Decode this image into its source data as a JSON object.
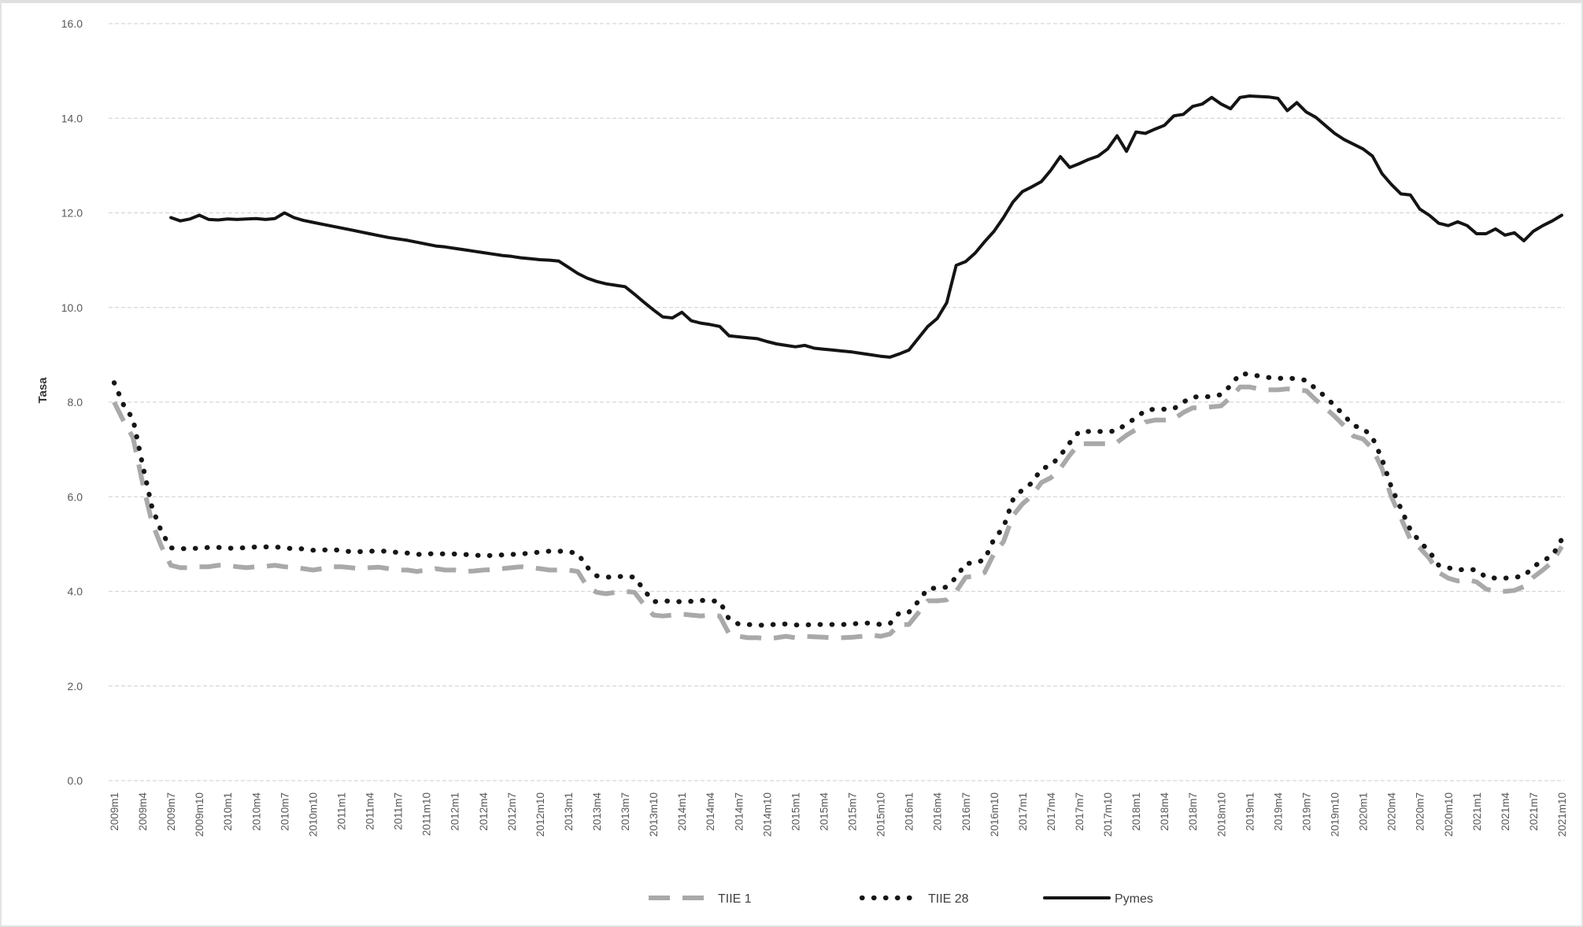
{
  "chart_data": {
    "type": "line",
    "title": "",
    "ylabel": "Tasa",
    "xlabel": "",
    "ylim": [
      0,
      16
    ],
    "ytick_step": 2,
    "ytick_labels": [
      "0.0",
      "2.0",
      "4.0",
      "6.0",
      "8.0",
      "10.0",
      "12.0",
      "14.0",
      "16.0"
    ],
    "x_tick_every": 3,
    "n_points": 154,
    "x_start": "2009m1",
    "x_end": "2021m10",
    "grid": "horizontal light-gray dashed",
    "legend_position": "bottom-center",
    "x_tick_labels": [
      "2009m1",
      "2009m4",
      "2009m7",
      "2009m10",
      "2010m1",
      "2010m4",
      "2010m7",
      "2010m10",
      "2011m1",
      "2011m4",
      "2011m7",
      "2011m10",
      "2012m1",
      "2012m4",
      "2012m7",
      "2012m10",
      "2013m1",
      "2013m4",
      "2013m7",
      "2013m10",
      "2014m1",
      "2014m4",
      "2014m7",
      "2014m10",
      "2015m1",
      "2015m4",
      "2015m7",
      "2015m10",
      "2016m1",
      "2016m4",
      "2016m7",
      "2016m10",
      "2017m1",
      "2017m4",
      "2017m7",
      "2017m10",
      "2018m1",
      "2018m4",
      "2018m7",
      "2018m10",
      "2019m1",
      "2019m4",
      "2019m7",
      "2019m10",
      "2020m1",
      "2020m4",
      "2020m7",
      "2020m10",
      "2021m1",
      "2021m4",
      "2021m7",
      "2021m10"
    ],
    "series": [
      {
        "name": "TIIE 1",
        "style": "dashed",
        "color": "#a9a9a9",
        "values": [
          8.0,
          7.6,
          7.25,
          6.3,
          5.45,
          4.95,
          4.55,
          4.5,
          4.5,
          4.52,
          4.52,
          4.55,
          4.55,
          4.52,
          4.5,
          4.52,
          4.53,
          4.55,
          4.52,
          4.5,
          4.48,
          4.45,
          4.48,
          4.52,
          4.52,
          4.5,
          4.48,
          4.5,
          4.51,
          4.48,
          4.45,
          4.45,
          4.42,
          4.45,
          4.48,
          4.45,
          4.45,
          4.42,
          4.43,
          4.45,
          4.46,
          4.48,
          4.5,
          4.52,
          4.5,
          4.48,
          4.45,
          4.45,
          4.45,
          4.42,
          4.1,
          3.98,
          3.95,
          3.98,
          4.0,
          3.98,
          3.72,
          3.5,
          3.48,
          3.5,
          3.52,
          3.5,
          3.48,
          3.5,
          3.48,
          3.1,
          3.05,
          3.02,
          3.02,
          3.0,
          3.02,
          3.05,
          3.02,
          3.05,
          3.04,
          3.03,
          3.02,
          3.02,
          3.03,
          3.05,
          3.08,
          3.05,
          3.1,
          3.3,
          3.3,
          3.55,
          3.8,
          3.8,
          3.82,
          4.0,
          4.3,
          4.32,
          4.4,
          4.8,
          5.05,
          5.6,
          5.85,
          6.02,
          6.3,
          6.4,
          6.6,
          6.88,
          7.12,
          7.12,
          7.12,
          7.12,
          7.15,
          7.3,
          7.42,
          7.58,
          7.62,
          7.62,
          7.64,
          7.78,
          7.88,
          7.88,
          7.9,
          7.92,
          8.1,
          8.32,
          8.32,
          8.28,
          8.26,
          8.26,
          8.28,
          8.26,
          8.24,
          8.05,
          7.88,
          7.7,
          7.5,
          7.28,
          7.22,
          7.02,
          6.6,
          6.0,
          5.55,
          5.1,
          4.92,
          4.7,
          4.4,
          4.28,
          4.22,
          4.25,
          4.2,
          4.05,
          4.0,
          4.0,
          4.02,
          4.1,
          4.3,
          4.45,
          4.62,
          4.95
        ]
      },
      {
        "name": "TIIE 28",
        "style": "dotted",
        "color": "#161616",
        "values": [
          8.41,
          7.94,
          7.64,
          6.68,
          5.78,
          5.26,
          4.92,
          4.9,
          4.91,
          4.91,
          4.93,
          4.93,
          4.91,
          4.92,
          4.92,
          4.94,
          4.94,
          4.94,
          4.92,
          4.9,
          4.9,
          4.87,
          4.87,
          4.89,
          4.86,
          4.84,
          4.84,
          4.85,
          4.85,
          4.85,
          4.82,
          4.81,
          4.78,
          4.79,
          4.8,
          4.79,
          4.79,
          4.78,
          4.77,
          4.75,
          4.76,
          4.77,
          4.78,
          4.79,
          4.81,
          4.83,
          4.85,
          4.85,
          4.84,
          4.8,
          4.51,
          4.33,
          4.3,
          4.31,
          4.32,
          4.3,
          4.03,
          3.78,
          3.8,
          3.79,
          3.78,
          3.79,
          3.81,
          3.8,
          3.79,
          3.41,
          3.31,
          3.3,
          3.29,
          3.28,
          3.31,
          3.31,
          3.29,
          3.29,
          3.3,
          3.3,
          3.3,
          3.3,
          3.31,
          3.33,
          3.33,
          3.3,
          3.32,
          3.55,
          3.56,
          3.79,
          4.06,
          4.07,
          4.09,
          4.3,
          4.59,
          4.6,
          4.67,
          5.11,
          5.35,
          5.94,
          6.15,
          6.29,
          6.59,
          6.66,
          6.87,
          7.14,
          7.38,
          7.38,
          7.38,
          7.38,
          7.39,
          7.55,
          7.66,
          7.83,
          7.85,
          7.85,
          7.86,
          8.0,
          8.11,
          8.11,
          8.12,
          8.16,
          8.35,
          8.6,
          8.59,
          8.55,
          8.52,
          8.5,
          8.51,
          8.49,
          8.46,
          8.28,
          8.12,
          7.92,
          7.72,
          7.5,
          7.45,
          7.25,
          6.8,
          6.2,
          5.75,
          5.3,
          5.05,
          4.85,
          4.55,
          4.5,
          4.45,
          4.47,
          4.45,
          4.3,
          4.28,
          4.28,
          4.3,
          4.32,
          4.52,
          4.65,
          4.75,
          5.1
        ]
      },
      {
        "name": "Pymes",
        "style": "solid",
        "color": "#141414",
        "values": [
          null,
          null,
          null,
          null,
          null,
          null,
          11.9,
          11.83,
          11.87,
          11.95,
          11.86,
          11.85,
          11.87,
          11.86,
          11.87,
          11.88,
          11.86,
          11.88,
          12.0,
          11.9,
          11.84,
          11.8,
          11.76,
          11.72,
          11.68,
          11.64,
          11.6,
          11.56,
          11.52,
          11.48,
          11.45,
          11.42,
          11.38,
          11.34,
          11.3,
          11.28,
          11.25,
          11.22,
          11.19,
          11.16,
          11.13,
          11.1,
          11.08,
          11.05,
          11.03,
          11.01,
          11.0,
          10.98,
          10.85,
          10.72,
          10.62,
          10.55,
          10.5,
          10.47,
          10.44,
          10.28,
          10.11,
          9.95,
          9.8,
          9.78,
          9.9,
          9.72,
          9.67,
          9.64,
          9.6,
          9.4,
          9.38,
          9.36,
          9.34,
          9.28,
          9.23,
          9.2,
          9.17,
          9.2,
          9.14,
          9.12,
          9.1,
          9.08,
          9.06,
          9.03,
          9.0,
          8.97,
          8.95,
          9.02,
          9.1,
          9.35,
          9.6,
          9.77,
          10.1,
          10.89,
          10.97,
          11.15,
          11.39,
          11.61,
          11.9,
          12.23,
          12.45,
          12.55,
          12.66,
          12.9,
          13.19,
          12.96,
          13.04,
          13.13,
          13.2,
          13.35,
          13.63,
          13.3,
          13.71,
          13.68,
          13.77,
          13.85,
          14.05,
          14.08,
          14.25,
          14.3,
          14.44,
          14.3,
          14.2,
          14.44,
          14.47,
          14.46,
          14.45,
          14.42,
          14.16,
          14.33,
          14.13,
          14.02,
          13.85,
          13.68,
          13.55,
          13.45,
          13.35,
          13.2,
          12.83,
          12.6,
          12.4,
          12.38,
          12.08,
          11.95,
          11.78,
          11.73,
          11.81,
          11.73,
          11.56,
          11.56,
          11.66,
          11.53,
          11.58,
          11.41,
          11.61,
          11.73,
          11.83,
          11.95
        ]
      }
    ],
    "legend": [
      {
        "label": "TIIE 1"
      },
      {
        "label": "TIIE 28"
      },
      {
        "label": "Pymes"
      }
    ]
  }
}
